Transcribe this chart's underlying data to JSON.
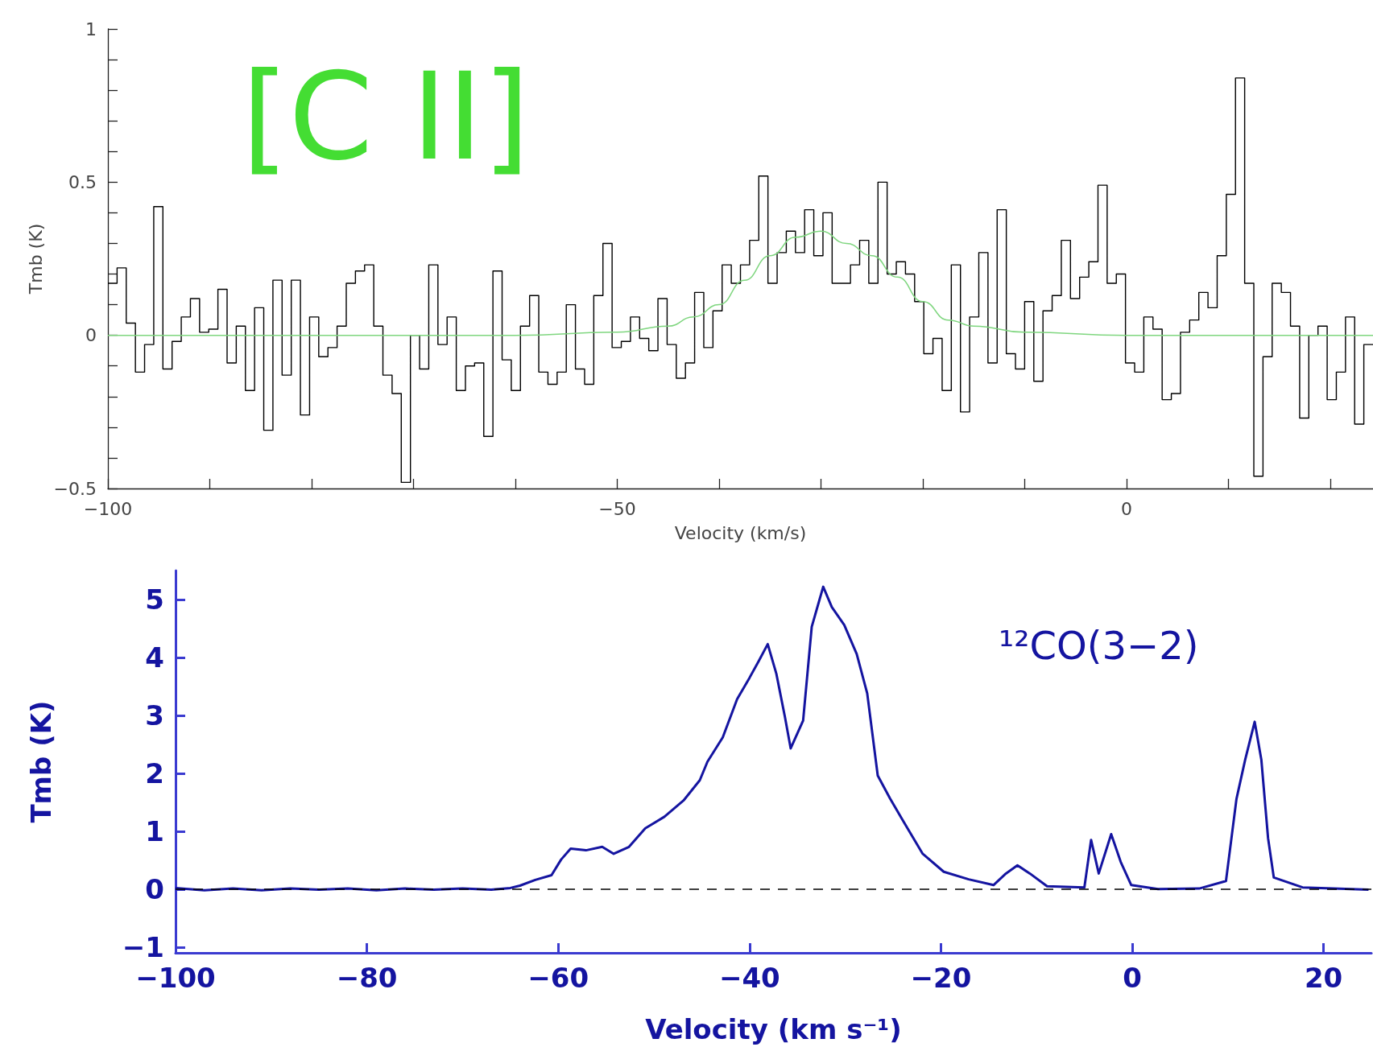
{
  "chart_data": [
    {
      "type": "histogram",
      "xlabel": "Velocity (km/s)",
      "ylabel": "Tmb (K)",
      "annotations": [
        "[C II]"
      ],
      "marker": "none",
      "grid": false,
      "bins": [
        -100,
        -99.1,
        -98.2,
        -97.3,
        -96.4,
        -95.5,
        -94.6,
        -93.7,
        -92.8,
        -91.9,
        -91,
        -90.1,
        -89.2,
        -88.3,
        -87.4,
        -86.5,
        -85.6,
        -84.7,
        -83.8,
        -82.9,
        -82,
        -81.1,
        -80.2,
        -79.3,
        -78.4,
        -77.5,
        -76.6,
        -75.7,
        -74.8,
        -73.9,
        -73,
        -72.1,
        -71.2,
        -70.3,
        -69.4,
        -68.5,
        -67.6,
        -66.7,
        -65.8,
        -64.9,
        -64,
        -63.1,
        -62.2,
        -61.3,
        -60.4,
        -59.5,
        -58.6,
        -57.7,
        -56.8,
        -55.9,
        -55,
        -54.1,
        -53.2,
        -52.3,
        -51.4,
        -50.5,
        -49.6,
        -48.7,
        -47.8,
        -46.9,
        -46,
        -45.1,
        -44.2,
        -43.3,
        -42.4,
        -41.5,
        -40.6,
        -39.7,
        -38.8,
        -37.9,
        -37,
        -36.1,
        -35.2,
        -34.3,
        -33.4,
        -32.5,
        -31.6,
        -30.7,
        -29.8,
        -28.9,
        -28,
        -27.1,
        -26.2,
        -25.3,
        -24.4,
        -23.5,
        -22.6,
        -21.7,
        -20.8,
        -19.9,
        -19,
        -18.1,
        -17.2,
        -16.3,
        -15.4,
        -14.5,
        -13.6,
        -12.7,
        -11.8,
        -10.9,
        -10,
        -9.1,
        -8.2,
        -7.3,
        -6.4,
        -5.5,
        -4.6,
        -3.7,
        -2.8,
        -1.9,
        -1,
        -0.1,
        0.8,
        1.7,
        2.6,
        3.5,
        4.4,
        5.3,
        6.2,
        7.1,
        8,
        8.9,
        9.8,
        10.7,
        11.6,
        12.5,
        13.4,
        14.3,
        15.2,
        16.1,
        17,
        17.9,
        18.8,
        19.7,
        20.6,
        21.5,
        22.4,
        23.3,
        24.2
      ],
      "xlim": [
        -100,
        24.2
      ],
      "ylim": [
        -0.5,
        1
      ],
      "xticks": [
        {
          "value": -100,
          "label": "−100"
        },
        {
          "value": -90,
          "label": null
        },
        {
          "value": -80,
          "label": null
        },
        {
          "value": -70,
          "label": null
        },
        {
          "value": -60,
          "label": null
        },
        {
          "value": -50,
          "label": "−50"
        },
        {
          "value": -40,
          "label": null
        },
        {
          "value": -30,
          "label": null
        },
        {
          "value": -20,
          "label": null
        },
        {
          "value": -10,
          "label": null
        },
        {
          "value": 0,
          "label": "0"
        },
        {
          "value": 10,
          "label": null
        },
        {
          "value": 20,
          "label": null
        }
      ],
      "yticks": [
        {
          "value": -0.5,
          "label": "−0.5"
        },
        {
          "value": -0.4,
          "label": null
        },
        {
          "value": -0.3,
          "label": null
        },
        {
          "value": -0.2,
          "label": null
        },
        {
          "value": -0.1,
          "label": null
        },
        {
          "value": 0,
          "label": "0"
        },
        {
          "value": 0.1,
          "label": null
        },
        {
          "value": 0.2,
          "label": null
        },
        {
          "value": 0.3,
          "label": null
        },
        {
          "value": 0.4,
          "label": null
        },
        0.5,
        {
          "value": 0.6,
          "label": null
        },
        {
          "value": 0.7,
          "label": null
        },
        {
          "value": 0.8,
          "label": null
        },
        {
          "value": 0.9,
          "label": null
        },
        1
      ],
      "series": [
        {
          "type": "histogram",
          "color": "#000000",
          "values": [
            0.17,
            0.22,
            0.04,
            -0.12,
            -0.03,
            0.42,
            -0.11,
            -0.02,
            0.06,
            0.12,
            0.01,
            0.02,
            0.15,
            -0.09,
            0.03,
            -0.18,
            0.09,
            -0.31,
            0.18,
            -0.13,
            0.18,
            -0.26,
            0.06,
            -0.07,
            -0.04,
            0.03,
            0.17,
            0.21,
            0.23,
            0.03,
            -0.13,
            -0.19,
            -0.48,
            0.0,
            -0.11,
            0.23,
            -0.03,
            0.06,
            -0.18,
            -0.1,
            -0.09,
            -0.33,
            0.21,
            -0.08,
            -0.18,
            0.03,
            0.13,
            -0.12,
            -0.16,
            -0.12,
            0.1,
            -0.11,
            -0.16,
            0.13,
            0.3,
            -0.04,
            -0.02,
            0.06,
            -0.01,
            -0.05,
            0.12,
            -0.03,
            -0.14,
            -0.09,
            0.14,
            -0.04,
            0.08,
            0.23,
            0.17,
            0.23,
            0.31,
            0.52,
            0.17,
            0.27,
            0.34,
            0.27,
            0.41,
            0.26,
            0.4,
            0.17,
            0.17,
            0.23,
            0.31,
            0.17,
            0.5,
            0.2,
            0.24,
            0.2,
            0.11,
            -0.06,
            -0.01,
            -0.18,
            0.23,
            -0.25,
            0.06,
            0.27,
            -0.09,
            0.41,
            -0.06,
            -0.11,
            0.11,
            -0.15,
            0.08,
            0.13,
            0.31,
            0.12,
            0.19,
            0.24,
            0.49,
            0.17,
            0.2,
            -0.09,
            -0.12,
            0.06,
            0.02,
            -0.21,
            -0.19,
            0.01,
            0.05,
            0.14,
            0.09,
            0.26,
            0.46,
            0.84,
            0.17,
            -0.46,
            -0.07,
            0.17,
            0.14,
            0.03,
            -0.27,
            0.0,
            0.03,
            -0.21,
            -0.12,
            0.06,
            -0.29,
            -0.03
          ]
        },
        {
          "type": "line",
          "color": "#7fd67f",
          "x": [
            -100,
            -60,
            -50,
            -45,
            -42.5,
            -40,
            -37.5,
            -35,
            -32.5,
            -30,
            -27.5,
            -25,
            -22.5,
            -20,
            -17.5,
            -15,
            -10,
            0,
            24.2
          ],
          "values": [
            0,
            0,
            0.01,
            0.03,
            0.06,
            0.1,
            0.18,
            0.26,
            0.32,
            0.34,
            0.3,
            0.26,
            0.19,
            0.11,
            0.05,
            0.03,
            0.01,
            0,
            0
          ]
        }
      ]
    },
    {
      "type": "line",
      "xlabel": "Velocity (km s⁻¹)",
      "ylabel": "Tmb (K)",
      "annotations": [
        "¹²CO(3−2)"
      ],
      "marker": "none",
      "grid": false,
      "xlim": [
        -100,
        25
      ],
      "ylim": [
        -1.1,
        5.5
      ],
      "xticks": [
        {
          "value": -100,
          "label": "−100"
        },
        {
          "value": -80,
          "label": "−80"
        },
        {
          "value": -60,
          "label": "−60"
        },
        {
          "value": -40,
          "label": "−40"
        },
        {
          "value": -20,
          "label": "−20"
        },
        {
          "value": 0,
          "label": "0"
        },
        20
      ],
      "yticks": [
        {
          "value": -1,
          "label": "−1"
        },
        {
          "value": 0,
          "label": "0"
        },
        1,
        2,
        3,
        4,
        5
      ],
      "ref_lines": [
        {
          "axis": "y",
          "value": 0,
          "color": "#000000",
          "line_style": "dashed"
        }
      ],
      "series": [
        {
          "color": "#1414a0",
          "x": [
            -100,
            -97,
            -94,
            -91,
            -88,
            -85,
            -82,
            -79,
            -76,
            -73,
            -70,
            -67,
            -65,
            -64,
            -62.4,
            -60.7,
            -59.7,
            -58.7,
            -57.1,
            -55.4,
            -54.2,
            -52.6,
            -50.9,
            -48.9,
            -46.9,
            -45.2,
            -44.4,
            -42.8,
            -41.3,
            -40,
            -39.1,
            -38.1,
            -37.2,
            -36.3,
            -35.7,
            -34.4,
            -33.5,
            -32.3,
            -31.4,
            -30.1,
            -28.8,
            -27.7,
            -26.6,
            -25.3,
            -23.6,
            -21.9,
            -19.7,
            -17.1,
            -14.5,
            -13.2,
            -12,
            -10.7,
            -8.9,
            -5,
            -4.3,
            -3.5,
            -2.2,
            -1.2,
            -0.1,
            2.7,
            7,
            9.8,
            10.9,
            11.8,
            12.8,
            13.5,
            14.2,
            14.8,
            17.8,
            21,
            24.7
          ],
          "values": [
            0.02,
            -0.02,
            0.01,
            -0.02,
            0.01,
            -0.01,
            0.01,
            -0.02,
            0.01,
            -0.01,
            0.01,
            -0.01,
            0.02,
            0.06,
            0.16,
            0.24,
            0.51,
            0.7,
            0.67,
            0.73,
            0.61,
            0.73,
            1.05,
            1.25,
            1.53,
            1.88,
            2.2,
            2.62,
            3.28,
            3.65,
            3.92,
            4.23,
            3.72,
            2.97,
            2.43,
            2.91,
            4.53,
            5.22,
            4.87,
            4.56,
            4.06,
            3.38,
            1.96,
            1.56,
            1.08,
            0.61,
            0.3,
            0.17,
            0.07,
            0.27,
            0.41,
            0.27,
            0.05,
            0.03,
            0.85,
            0.27,
            0.95,
            0.47,
            0.07,
            0,
            0.01,
            0.14,
            1.56,
            2.23,
            2.89,
            2.23,
            0.88,
            0.2,
            0.03,
            0.01,
            -0.01
          ]
        }
      ]
    }
  ]
}
